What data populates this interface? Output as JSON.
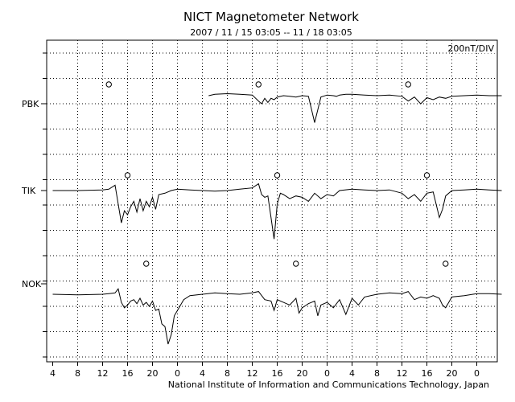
{
  "chart_data": {
    "type": "line",
    "title": "NICT Magnetometer Network",
    "subtitle": "2007 / 11 / 15   03:05 -- 11 / 18   03:05",
    "scale_label": "200nT/DIV",
    "credit": "National Institute of Information and Communications Technology, Japan",
    "x_axis": {
      "unit": "hours since 2007-11-15 03:05 UT",
      "range": [
        0,
        72
      ],
      "tick_labels": [
        "4",
        "8",
        "12",
        "16",
        "20",
        "0",
        "4",
        "8",
        "12",
        "16",
        "20",
        "0",
        "4",
        "8",
        "12",
        "16",
        "20",
        "0"
      ]
    },
    "y_axis": {
      "unit": "nT",
      "per_division": 200
    },
    "grid": true,
    "series": [
      {
        "name": "PBK",
        "local_midnight_marker_hours": [
          9,
          33,
          57
        ],
        "x": [
          25,
          26,
          28,
          30,
          32,
          33,
          33.5,
          34,
          34.5,
          35,
          35.5,
          36,
          37,
          38,
          39,
          40,
          41,
          42,
          43,
          44,
          45,
          45.5,
          46,
          47,
          48,
          50,
          52,
          54,
          56,
          57,
          58,
          59,
          60,
          61,
          62,
          63,
          64,
          66,
          68,
          70,
          72
        ],
        "y": [
          0,
          10,
          15,
          10,
          5,
          -40,
          -60,
          -20,
          -50,
          -20,
          -30,
          -10,
          0,
          -5,
          -10,
          0,
          -5,
          -200,
          -10,
          5,
          0,
          -5,
          5,
          10,
          10,
          5,
          0,
          5,
          -5,
          -40,
          -10,
          -60,
          -15,
          -30,
          -10,
          -20,
          -5,
          0,
          5,
          0,
          0
        ]
      },
      {
        "name": "TIK",
        "local_midnight_marker_hours": [
          12,
          36,
          60
        ],
        "x": [
          0,
          4,
          8,
          9,
          10,
          10.5,
          11,
          11.5,
          12,
          12.5,
          13,
          13.5,
          14,
          14.5,
          15,
          15.5,
          16,
          16.5,
          17,
          18,
          19,
          20,
          22,
          24,
          26,
          28,
          30,
          32,
          33,
          33.5,
          34,
          34.5,
          35,
          35.5,
          36,
          36.5,
          37,
          38,
          39,
          40,
          41,
          42,
          43,
          44,
          45,
          46,
          48,
          50,
          52,
          54,
          56,
          57,
          58,
          59,
          60,
          61,
          62,
          62.5,
          63,
          64,
          66,
          68,
          70,
          72
        ],
        "y": [
          0,
          0,
          5,
          10,
          40,
          -100,
          -240,
          -150,
          -180,
          -120,
          -80,
          -160,
          -60,
          -150,
          -80,
          -120,
          -50,
          -140,
          -30,
          -20,
          0,
          10,
          5,
          0,
          -5,
          0,
          10,
          20,
          50,
          -30,
          -50,
          -40,
          -200,
          -360,
          -100,
          -20,
          -30,
          -60,
          -40,
          -50,
          -80,
          -20,
          -60,
          -30,
          -40,
          0,
          10,
          5,
          0,
          5,
          -20,
          -60,
          -30,
          -80,
          -20,
          -10,
          -200,
          -140,
          -40,
          0,
          5,
          10,
          5,
          0
        ]
      },
      {
        "name": "NOK",
        "local_midnight_marker_hours": [
          15,
          39,
          63
        ],
        "x": [
          0,
          4,
          8,
          9,
          10,
          10.5,
          11,
          11.5,
          12,
          12.5,
          13,
          13.5,
          14,
          14.5,
          15,
          15.5,
          16,
          16.5,
          17,
          17.5,
          18,
          18.5,
          19,
          19.5,
          20,
          21,
          22,
          24,
          26,
          28,
          30,
          32,
          33,
          34,
          35,
          35.5,
          36,
          37,
          38,
          39,
          39.5,
          40,
          41,
          42,
          42.5,
          43,
          44,
          45,
          46,
          47,
          48,
          49,
          50,
          52,
          54,
          56,
          57,
          58,
          59,
          60,
          61,
          62,
          62.5,
          63,
          64,
          66,
          68,
          70,
          72
        ],
        "y": [
          0,
          -5,
          0,
          5,
          10,
          40,
          -60,
          -100,
          -80,
          -50,
          -40,
          -70,
          -30,
          -80,
          -60,
          -90,
          -50,
          -120,
          -110,
          -220,
          -240,
          -370,
          -300,
          -160,
          -120,
          -40,
          -10,
          0,
          10,
          5,
          0,
          10,
          20,
          -40,
          -50,
          -120,
          -40,
          -60,
          -80,
          -30,
          -140,
          -100,
          -70,
          -50,
          -160,
          -80,
          -60,
          -100,
          -40,
          -150,
          -30,
          -80,
          -20,
          0,
          10,
          5,
          20,
          -40,
          -20,
          -30,
          -10,
          -30,
          -80,
          -100,
          -20,
          -10,
          5,
          5,
          0
        ]
      }
    ]
  }
}
